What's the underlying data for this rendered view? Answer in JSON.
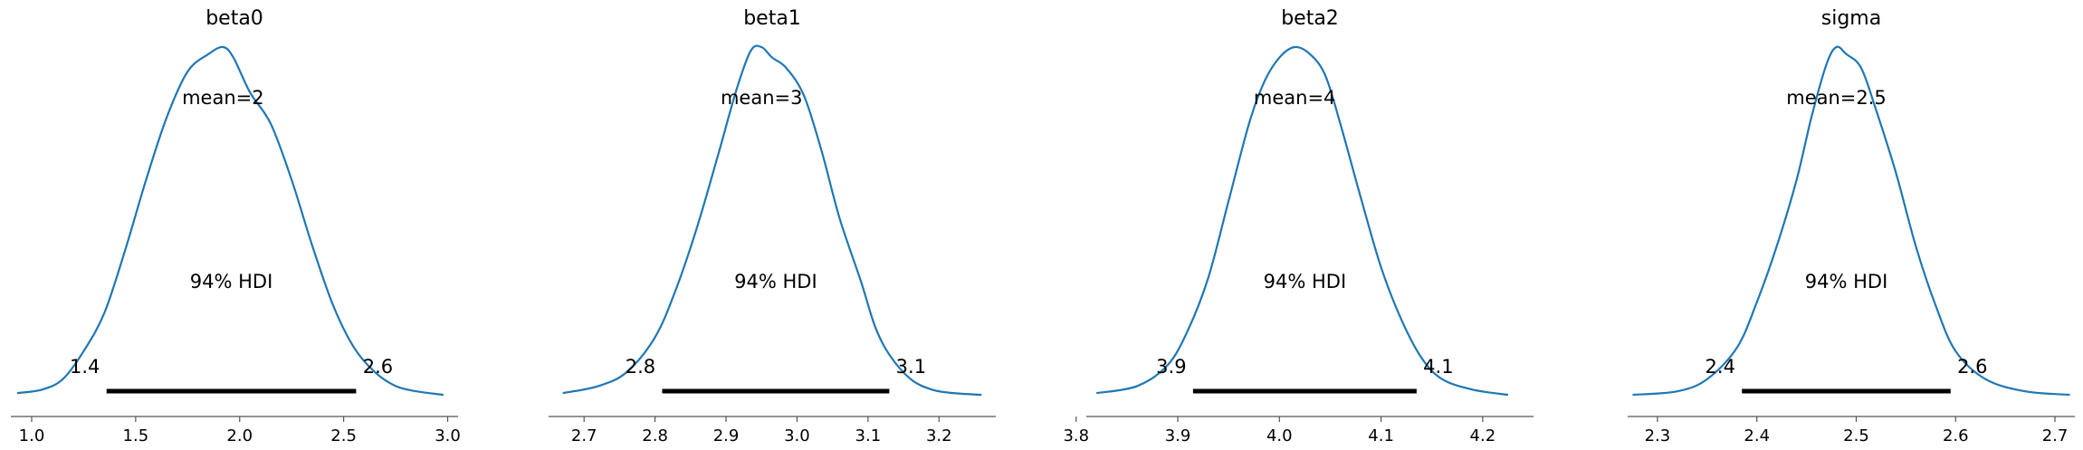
{
  "chart_data": [
    {
      "type": "line",
      "title": "beta0",
      "mean_label": "mean=2",
      "hdi_label": "94% HDI",
      "hdi_low_label": "1.4",
      "hdi_high_label": "2.6",
      "hdi": [
        1.36,
        2.56
      ],
      "xlim": [
        0.9,
        3.05
      ],
      "ticks": [
        1.0,
        1.5,
        2.0,
        2.5,
        3.0
      ],
      "tick_labels": [
        "1.0",
        "1.5",
        "2.0",
        "2.5",
        "3.0"
      ],
      "x": [
        0.93,
        1.05,
        1.15,
        1.25,
        1.35,
        1.45,
        1.55,
        1.65,
        1.75,
        1.85,
        1.92,
        1.97,
        2.05,
        2.15,
        2.25,
        2.35,
        2.45,
        2.55,
        2.65,
        2.75,
        2.85,
        2.98
      ],
      "density": [
        0.01,
        0.02,
        0.05,
        0.13,
        0.24,
        0.42,
        0.62,
        0.8,
        0.93,
        0.98,
        1.0,
        0.97,
        0.87,
        0.78,
        0.62,
        0.43,
        0.26,
        0.14,
        0.07,
        0.03,
        0.015,
        0.005
      ]
    },
    {
      "type": "line",
      "title": "beta1",
      "mean_label": "mean=3",
      "hdi_label": "94% HDI",
      "hdi_low_label": "2.8",
      "hdi_high_label": "3.1",
      "hdi": [
        2.81,
        3.13
      ],
      "xlim": [
        2.65,
        3.28
      ],
      "ticks": [
        2.7,
        2.8,
        2.9,
        3.0,
        3.1,
        3.2
      ],
      "tick_labels": [
        "2.7",
        "2.8",
        "2.9",
        "3.0",
        "3.1",
        "3.2"
      ],
      "x": [
        2.67,
        2.72,
        2.76,
        2.8,
        2.83,
        2.86,
        2.89,
        2.915,
        2.935,
        2.95,
        2.965,
        2.985,
        3.01,
        3.035,
        3.06,
        3.09,
        3.11,
        3.13,
        3.16,
        3.19,
        3.22,
        3.26
      ],
      "density": [
        0.01,
        0.03,
        0.07,
        0.17,
        0.31,
        0.49,
        0.7,
        0.88,
        0.99,
        1.0,
        0.97,
        0.94,
        0.86,
        0.7,
        0.51,
        0.33,
        0.2,
        0.12,
        0.05,
        0.02,
        0.01,
        0.005
      ]
    },
    {
      "type": "line",
      "title": "beta2",
      "mean_label": "mean=4",
      "hdi_label": "94% HDI",
      "hdi_low_label": "3.9",
      "hdi_high_label": "4.1",
      "hdi": [
        3.915,
        4.135
      ],
      "xlim": [
        3.81,
        4.25
      ],
      "ticks": [
        3.8,
        3.9,
        4.0,
        4.1,
        4.2
      ],
      "tick_labels": [
        "3.8",
        "3.9",
        "4.0",
        "4.1",
        "4.2"
      ],
      "x": [
        3.82,
        3.86,
        3.89,
        3.91,
        3.93,
        3.95,
        3.97,
        3.985,
        4.0,
        4.015,
        4.03,
        4.045,
        4.06,
        4.08,
        4.1,
        4.12,
        4.14,
        4.16,
        4.19,
        4.225
      ],
      "density": [
        0.01,
        0.03,
        0.09,
        0.19,
        0.34,
        0.56,
        0.78,
        0.9,
        0.97,
        1.0,
        0.98,
        0.92,
        0.78,
        0.57,
        0.37,
        0.22,
        0.11,
        0.05,
        0.02,
        0.005
      ]
    },
    {
      "type": "line",
      "title": "sigma",
      "mean_label": "mean=2.5",
      "hdi_label": "94% HDI",
      "hdi_low_label": "2.4",
      "hdi_high_label": "2.6",
      "hdi": [
        2.385,
        2.595
      ],
      "xlim": [
        2.27,
        2.72
      ],
      "ticks": [
        2.3,
        2.4,
        2.5,
        2.6,
        2.7
      ],
      "tick_labels": [
        "2.3",
        "2.4",
        "2.5",
        "2.6",
        "2.7"
      ],
      "x": [
        2.275,
        2.32,
        2.35,
        2.38,
        2.4,
        2.42,
        2.44,
        2.455,
        2.47,
        2.48,
        2.49,
        2.505,
        2.52,
        2.54,
        2.56,
        2.58,
        2.6,
        2.63,
        2.67,
        2.715
      ],
      "density": [
        0.005,
        0.015,
        0.05,
        0.14,
        0.27,
        0.43,
        0.62,
        0.8,
        0.95,
        1.0,
        0.98,
        0.94,
        0.82,
        0.64,
        0.43,
        0.26,
        0.13,
        0.05,
        0.015,
        0.005
      ]
    }
  ],
  "colors": {
    "kde": "#1f77b4",
    "hdi": "#000000",
    "axis": "#555555"
  }
}
